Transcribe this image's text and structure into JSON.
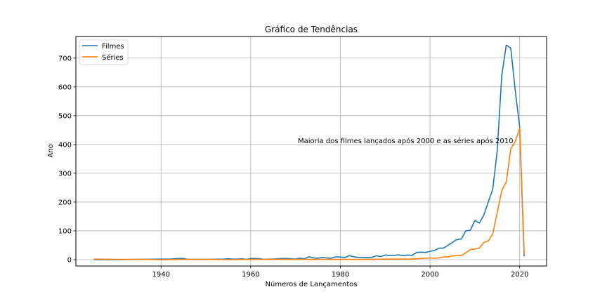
{
  "chart_data": {
    "type": "line",
    "title": "Gráfico de Tendências",
    "xlabel": "Números de Lançamentos",
    "ylabel": "Ano",
    "xlim": [
      1921,
      2026
    ],
    "ylim": [
      -22,
      775
    ],
    "xticks": [
      1940,
      1960,
      1980,
      2000,
      2020
    ],
    "yticks": [
      0,
      100,
      200,
      300,
      400,
      500,
      600,
      700
    ],
    "grid": true,
    "legend": "top-left",
    "annotation": {
      "text": "Maioria dos filmes lançados após 2000 e as séries após 2010",
      "x": 1970,
      "y": 400
    },
    "series": [
      {
        "name": "Filmes",
        "color": "#1f77b4",
        "x": [
          1925,
          1930,
          1935,
          1940,
          1942,
          1943,
          1944,
          1945,
          1946,
          1950,
          1954,
          1955,
          1956,
          1957,
          1958,
          1959,
          1960,
          1961,
          1962,
          1963,
          1964,
          1965,
          1966,
          1967,
          1968,
          1969,
          1970,
          1971,
          1972,
          1973,
          1974,
          1975,
          1976,
          1977,
          1978,
          1979,
          1980,
          1981,
          1982,
          1983,
          1984,
          1985,
          1986,
          1987,
          1988,
          1989,
          1990,
          1991,
          1992,
          1993,
          1994,
          1995,
          1996,
          1997,
          1998,
          1999,
          2000,
          2001,
          2002,
          2003,
          2004,
          2005,
          2006,
          2007,
          2008,
          2009,
          2010,
          2011,
          2012,
          2013,
          2014,
          2015,
          2016,
          2017,
          2018,
          2019,
          2020,
          2021
        ],
        "values": [
          0,
          0,
          1,
          2,
          2,
          3,
          4,
          4,
          1,
          1,
          2,
          3,
          2,
          2,
          3,
          1,
          4,
          4,
          3,
          1,
          2,
          2,
          3,
          4,
          4,
          3,
          2,
          5,
          3,
          10,
          6,
          5,
          8,
          6,
          5,
          10,
          9,
          7,
          14,
          10,
          8,
          8,
          7,
          8,
          13,
          11,
          16,
          15,
          15,
          17,
          14,
          16,
          15,
          25,
          26,
          25,
          29,
          32,
          40,
          40,
          50,
          60,
          70,
          72,
          100,
          102,
          136,
          127,
          155,
          200,
          245,
          380,
          640,
          745,
          735,
          590,
          460,
          12
        ]
      },
      {
        "name": "Séries",
        "color": "#ff7f0e",
        "x": [
          1925,
          1930,
          1935,
          1940,
          1945,
          1950,
          1955,
          1960,
          1965,
          1970,
          1975,
          1980,
          1985,
          1990,
          1995,
          1998,
          2000,
          2001,
          2002,
          2003,
          2004,
          2005,
          2006,
          2007,
          2008,
          2009,
          2010,
          2011,
          2012,
          2013,
          2014,
          2015,
          2016,
          2017,
          2018,
          2019,
          2020,
          2021
        ],
        "values": [
          2,
          1,
          1,
          0,
          1,
          1,
          0,
          1,
          1,
          1,
          1,
          1,
          1,
          2,
          2,
          4,
          6,
          5,
          6,
          9,
          10,
          13,
          14,
          14,
          24,
          35,
          37,
          40,
          60,
          65,
          90,
          165,
          240,
          270,
          385,
          410,
          456,
          20
        ]
      }
    ]
  }
}
